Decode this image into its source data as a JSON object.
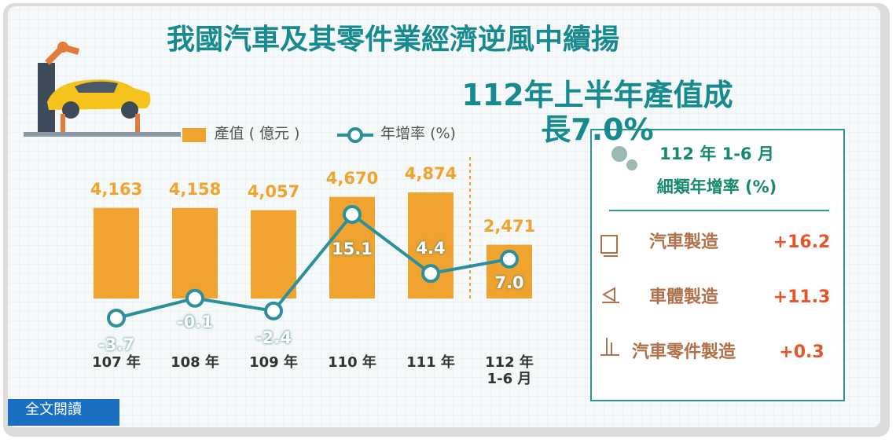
{
  "title": "我國汽車及其零件業經濟逆風中續揚",
  "subtitle": "112年上半年產值成長7.0%",
  "chart_data": {
    "type": "combo",
    "categories": [
      "107 年",
      "108 年",
      "109 年",
      "110 年",
      "111 年",
      "112 年\n1-6 月"
    ],
    "series": [
      {
        "name": "產值 ( 億元 )",
        "type": "bar",
        "color": "#f0a32e",
        "values": [
          4163,
          4158,
          4057,
          4670,
          4874,
          2471
        ],
        "value_labels": [
          "4,163",
          "4,158",
          "4,057",
          "4,670",
          "4,874",
          "2,471"
        ]
      },
      {
        "name": "年增率 (%)",
        "type": "line",
        "axis": "y2",
        "color": "#2b8f9c",
        "values": [
          -3.7,
          -0.1,
          -2.4,
          15.1,
          4.4,
          7.0
        ],
        "value_labels": [
          "-3.7",
          "-0.1",
          "-2.4",
          "15.1",
          "4.4",
          "7.0"
        ]
      }
    ]
  },
  "panel": {
    "title": "112 年 1-6 月",
    "subtitle": "細類年增率 (%)",
    "rows": [
      {
        "label": "汽車製造",
        "value": "+16.2"
      },
      {
        "label": "車體製造",
        "value": "+11.3"
      },
      {
        "label": "汽車零件製造",
        "value": "+0.3"
      }
    ]
  },
  "button": "全文閱讀"
}
